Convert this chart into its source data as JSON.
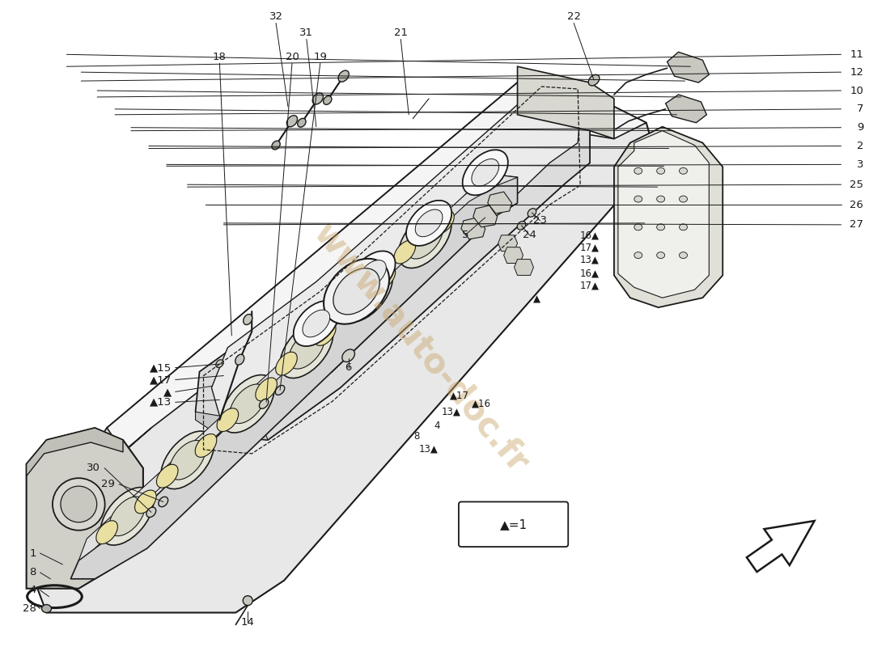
{
  "bg_color": "#ffffff",
  "line_color": "#1a1a1a",
  "fill_light": "#f2f2f2",
  "fill_mid": "#e0e0e0",
  "fill_dark": "#c8c8c8",
  "fill_yellow": "#e8dfa0",
  "watermark_color": "#c8a468",
  "watermark_text": "www.auto-doc.fr",
  "watermark_alpha": 0.45,
  "arrow_legend": "▲=1",
  "right_labels": [
    {
      "num": "11",
      "fy": 0.925
    },
    {
      "num": "12",
      "fy": 0.905
    },
    {
      "num": "10",
      "fy": 0.882
    },
    {
      "num": "7",
      "fy": 0.858
    },
    {
      "num": "9",
      "fy": 0.835
    },
    {
      "num": "2",
      "fy": 0.812
    },
    {
      "num": "3",
      "fy": 0.788
    },
    {
      "num": "25",
      "fy": 0.762
    },
    {
      "num": "26",
      "fy": 0.738
    },
    {
      "num": "27",
      "fy": 0.714
    }
  ]
}
